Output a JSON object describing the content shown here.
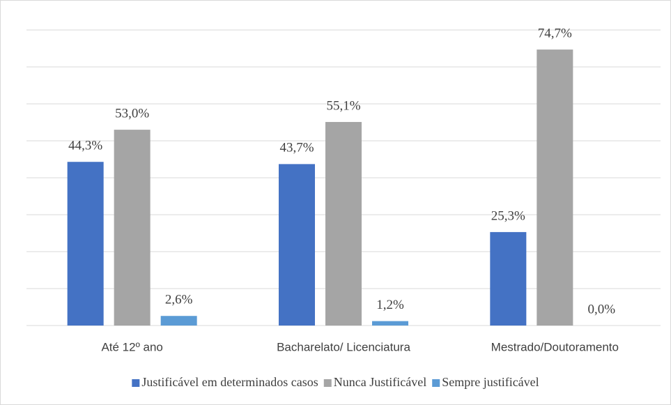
{
  "chart_data": {
    "type": "bar",
    "categories": [
      "Até 12º ano",
      "Bacharelato/ Licenciatura",
      "Mestrado/Doutoramento"
    ],
    "series": [
      {
        "name": "Justificável em determinados casos",
        "color": "#4472c4",
        "values": [
          44.3,
          43.7,
          25.3
        ],
        "value_labels": [
          "44,3%",
          "43,7%",
          "25,3%"
        ]
      },
      {
        "name": "Nunca Justificável",
        "color": "#a5a5a5",
        "values": [
          53.0,
          55.1,
          74.7
        ],
        "value_labels": [
          "53,0%",
          "55,1%",
          "74,7%"
        ]
      },
      {
        "name": "Sempre justificável",
        "color": "#5b9bd5",
        "values": [
          2.6,
          1.2,
          0.0
        ],
        "value_labels": [
          "2,6%",
          "1,2%",
          "0,0%"
        ]
      }
    ],
    "ylim": [
      0,
      80
    ],
    "yticks": [
      0,
      10,
      20,
      30,
      40,
      50,
      60,
      70,
      80
    ],
    "grid": true,
    "legend": "bottom"
  }
}
